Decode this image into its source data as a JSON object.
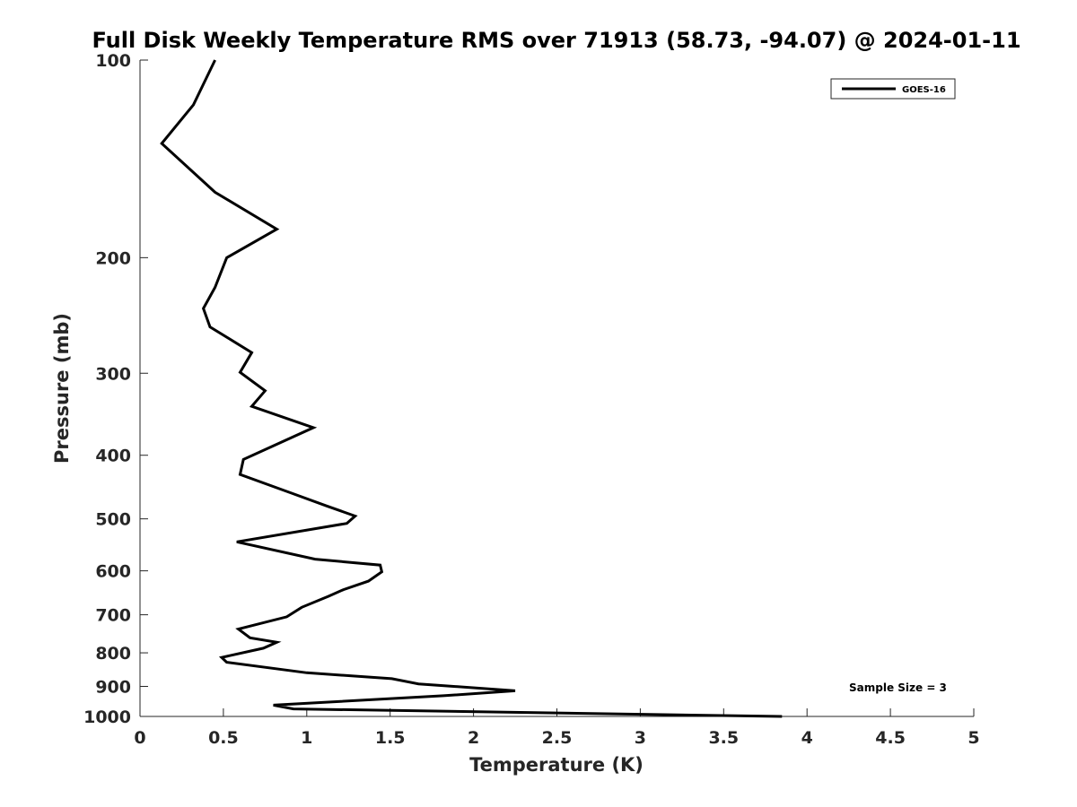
{
  "chart_data": {
    "type": "line",
    "title": "Full Disk Weekly Temperature RMS over 71913 (58.73, -94.07) @ 2024-01-11",
    "xlabel": "Temperature (K)",
    "ylabel": "Pressure (mb)",
    "xlim": [
      0,
      5
    ],
    "ylim": [
      100,
      1000
    ],
    "yscale": "log",
    "y_reversed": true,
    "grid": false,
    "legend_position": "top-right",
    "x_ticks": [
      0,
      0.5,
      1,
      1.5,
      2,
      2.5,
      3,
      3.5,
      4,
      4.5,
      5
    ],
    "x_tick_labels": [
      "0",
      "0.5",
      "1",
      "1.5",
      "2",
      "2.5",
      "3",
      "3.5",
      "4",
      "4.5",
      "5"
    ],
    "y_ticks": [
      100,
      200,
      300,
      400,
      500,
      600,
      700,
      800,
      900,
      1000
    ],
    "y_tick_labels": [
      "100",
      "200",
      "300",
      "400",
      "500",
      "600",
      "700",
      "800",
      "900",
      "1000"
    ],
    "annotation": "Sample Size = 3",
    "series": [
      {
        "name": "GOES-16",
        "color": "#000000",
        "x": [
          0.45,
          0.32,
          0.13,
          0.45,
          0.82,
          0.52,
          0.45,
          0.38,
          0.42,
          0.67,
          0.6,
          0.75,
          0.67,
          1.04,
          0.62,
          0.6,
          0.9,
          1.12,
          1.29,
          1.24,
          0.58,
          1.05,
          1.44,
          1.45,
          1.37,
          1.22,
          1.13,
          0.97,
          0.88,
          0.59,
          0.66,
          0.82,
          0.74,
          0.49,
          0.52,
          1.0,
          1.51,
          1.67,
          2.25,
          1.82,
          0.8,
          0.92,
          3.85
        ],
        "y": [
          100,
          117,
          134,
          159,
          181,
          200,
          222,
          239,
          255,
          279,
          299,
          319,
          337,
          363,
          406,
          428,
          456,
          478,
          495,
          508,
          542,
          576,
          588,
          602,
          622,
          641,
          656,
          682,
          705,
          736,
          759,
          771,
          787,
          813,
          827,
          858,
          876,
          892,
          914,
          930,
          961,
          974,
          1000
        ]
      }
    ]
  }
}
